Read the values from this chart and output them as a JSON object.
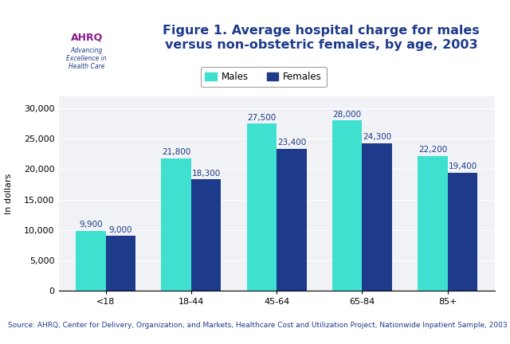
{
  "title": "Figure 1. Average hospital charge for males\nversus non-obstetric females, by age, 2003",
  "categories": [
    "<18",
    "18-44",
    "45-64",
    "65-84",
    "85+"
  ],
  "males": [
    9900,
    21800,
    27500,
    28000,
    22200
  ],
  "females": [
    9000,
    18300,
    23400,
    24300,
    19400
  ],
  "males_labels": [
    "9,900",
    "21,800",
    "27,500",
    "28,000",
    "22,200"
  ],
  "females_labels": [
    "9,000",
    "18,300",
    "23,400",
    "24,300",
    "19,400"
  ],
  "males_color": "#40E0D0",
  "females_color": "#1E3A8A",
  "ylabel": "In dollars",
  "ylim": [
    0,
    32000
  ],
  "yticks": [
    0,
    5000,
    10000,
    15000,
    20000,
    25000,
    30000
  ],
  "ytick_labels": [
    "0",
    "5,000",
    "10,000",
    "15,000",
    "20,000",
    "25,000",
    "30,000"
  ],
  "chart_bg": "#F0F2F5",
  "outer_bg": "#FFFFFF",
  "header_bg": "#FFFFFF",
  "separator_color": "#1E3A8A",
  "source_text": "Source: AHRQ, Center for Delivery, Organization, and Markets, Healthcare Cost and Utilization Project, Nationwide Inpatient Sample, 2003",
  "title_color": "#1E3A8A",
  "bar_width": 0.35,
  "legend_males": "Males",
  "legend_females": "Females",
  "label_fontsize": 7.5,
  "axis_label_fontsize": 8,
  "tick_fontsize": 8,
  "title_fontsize": 11.5,
  "source_fontsize": 6.5
}
